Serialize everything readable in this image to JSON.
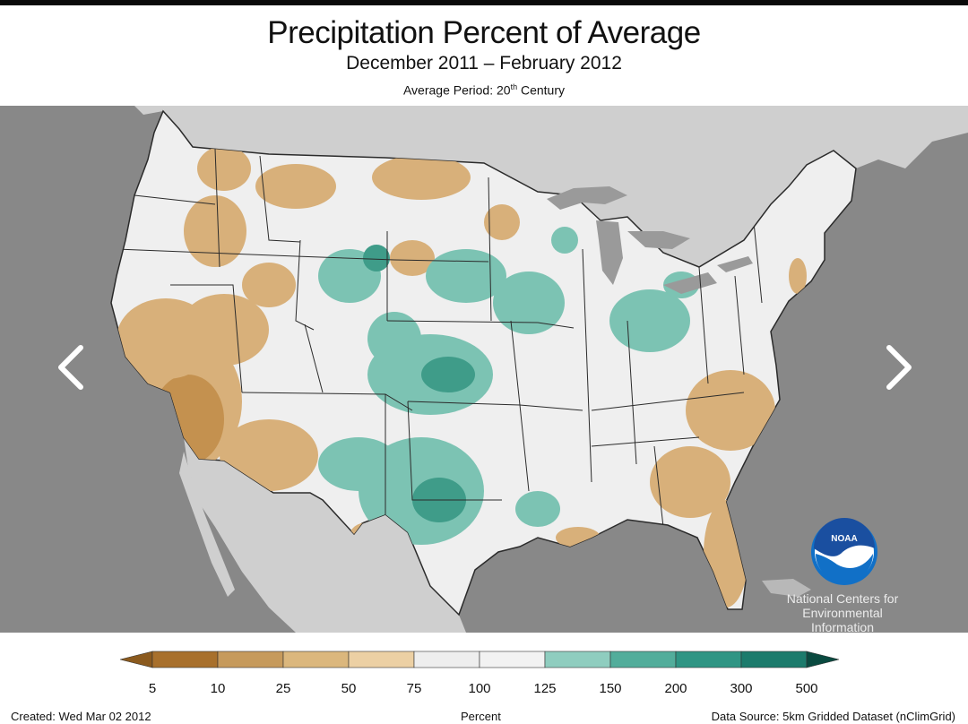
{
  "header": {
    "title": "Precipitation Percent of Average",
    "subtitle": "December 2011 – February 2012",
    "average_period_prefix": "Average Period: 20",
    "average_period_sup": "th",
    "average_period_suffix": " Century"
  },
  "logo": {
    "noaa": "NOAA",
    "org_lines": [
      "National Centers for",
      "Environmental",
      "Information"
    ]
  },
  "legend": {
    "unit": "Percent",
    "ticks": [
      "5",
      "10",
      "25",
      "50",
      "75",
      "100",
      "125",
      "150",
      "200",
      "300",
      "500"
    ],
    "colors": [
      "#8b5a1e",
      "#a8702c",
      "#c69a5c",
      "#dbb77d",
      "#ecd0a4",
      "#eeeeee",
      "#f2f2f2",
      "#8fcdbf",
      "#52ad9b",
      "#2f9584",
      "#1c7b6c",
      "#0a4a40"
    ]
  },
  "footer": {
    "created": "Created: Wed Mar 02 2012",
    "source": "Data Source: 5km Gridded Dataset (nClimGrid)"
  },
  "map_colors": {
    "ocean": "#888888",
    "land_outside": "#cfcfcf",
    "lakes": "#9a9a9a",
    "us_base": "#efefef",
    "dry": "#d8b07a",
    "very_dry": "#c4914f",
    "wet": "#7cc3b3",
    "very_wet": "#3f9c89"
  }
}
